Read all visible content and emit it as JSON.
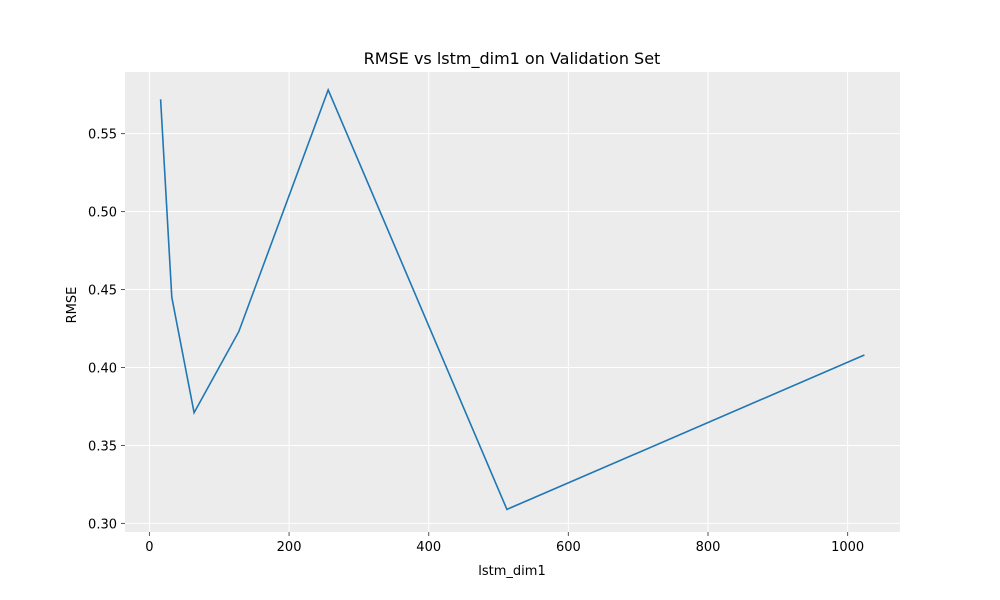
{
  "chart_data": {
    "type": "line",
    "title": "RMSE vs lstm_dim1 on Validation Set",
    "xlabel": "lstm_dim1",
    "ylabel": "RMSE",
    "xlim": [
      -35,
      1075
    ],
    "ylim": [
      0.2945,
      0.5895
    ],
    "xticks": [
      0,
      200,
      400,
      600,
      800,
      1000
    ],
    "yticks": [
      0.3,
      0.35,
      0.4,
      0.45,
      0.5,
      0.55
    ],
    "xtick_labels": [
      "0",
      "200",
      "400",
      "600",
      "800",
      "1000"
    ],
    "ytick_labels": [
      "0.30",
      "0.35",
      "0.40",
      "0.45",
      "0.50",
      "0.55"
    ],
    "grid": true,
    "series": [
      {
        "color": "#1f77b4",
        "x": [
          16,
          32,
          64,
          128,
          256,
          512,
          1024
        ],
        "y": [
          0.572,
          0.445,
          0.371,
          0.423,
          0.578,
          0.309,
          0.408
        ]
      }
    ]
  },
  "style": {
    "plot_background": "#ececec",
    "grid_color": "#ffffff",
    "line_color": "#1f77b4"
  }
}
